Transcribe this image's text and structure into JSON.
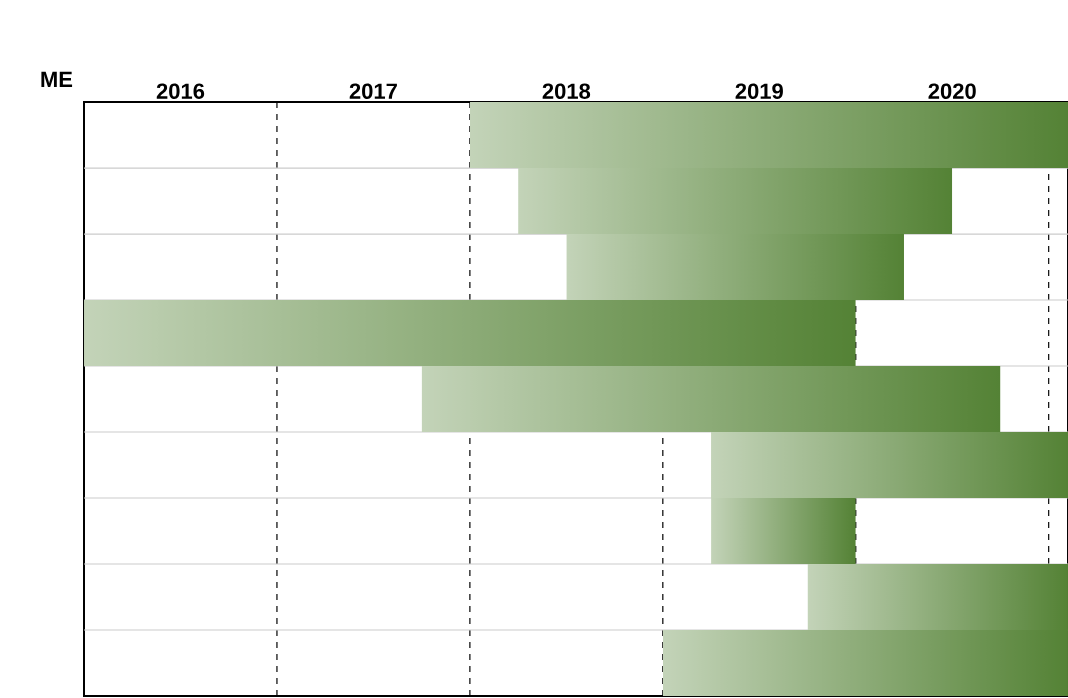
{
  "chart_data": {
    "type": "bar",
    "orientation": "horizontal",
    "ylabel": "ME",
    "categories": [
      null,
      null,
      null,
      null,
      null,
      null,
      null,
      null,
      null
    ],
    "base": [
      2018,
      2018.25,
      2018.5,
      2016,
      2017.75,
      2019.25,
      2019.25,
      2019.75,
      2019
    ],
    "values": [
      3.1,
      2.25,
      1.75,
      4,
      3,
      1.85,
      0.75,
      1.35,
      2.1
    ],
    "color": "#548235",
    "xlim": [
      2016,
      2021.1
    ],
    "xticks": [
      {
        "value": 2016.5,
        "label": "2016"
      },
      {
        "value": 2017,
        "label": null
      },
      {
        "value": 2017.5,
        "label": "2017"
      },
      {
        "value": 2018,
        "label": null
      },
      {
        "value": 2018.5,
        "label": "2018"
      },
      {
        "value": 2019,
        "label": null
      },
      {
        "value": 2019.5,
        "label": "2019"
      },
      {
        "value": 2020,
        "label": null
      },
      {
        "value": 2020.5,
        "label": "2020"
      },
      {
        "value": 2021,
        "label": null
      }
    ],
    "grid": true
  }
}
